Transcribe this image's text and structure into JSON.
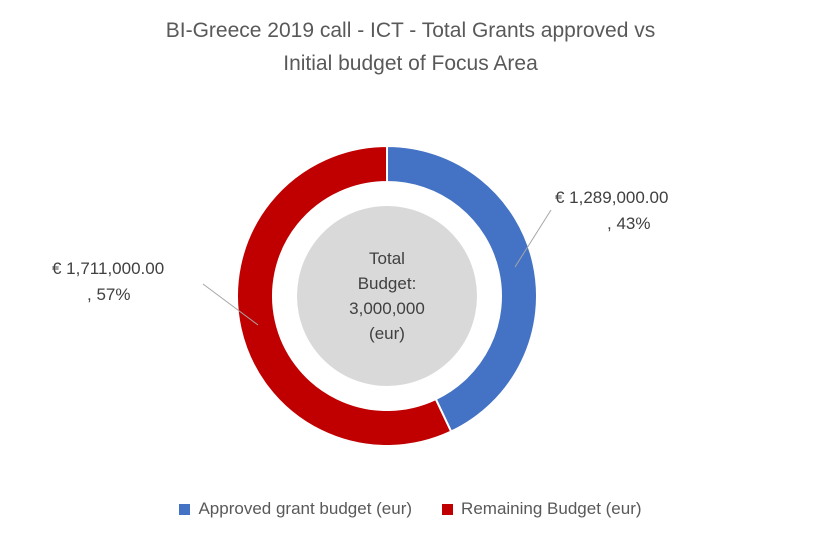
{
  "chart_data": {
    "type": "pie",
    "variant": "donut",
    "title_lines": [
      "BI-Greece 2019 call - ICT - Total Grants approved vs",
      "Initial budget of Focus Area"
    ],
    "categories": [
      "Approved grant budget (eur)",
      "Remaining Budget (eur)"
    ],
    "values": [
      1289000,
      1711000
    ],
    "colors": [
      "#4472C4",
      "#C00000"
    ],
    "data_labels": [
      {
        "value": "€ 1,289,000.00",
        "percent": ", 43%"
      },
      {
        "value": "€ 1,711,000.00",
        "percent": ", 57%"
      }
    ],
    "center_label": [
      "Total",
      "Budget:",
      "3,000,000",
      "(eur)"
    ],
    "center_fill": "#D9D9D9",
    "legend_position": "bottom"
  }
}
